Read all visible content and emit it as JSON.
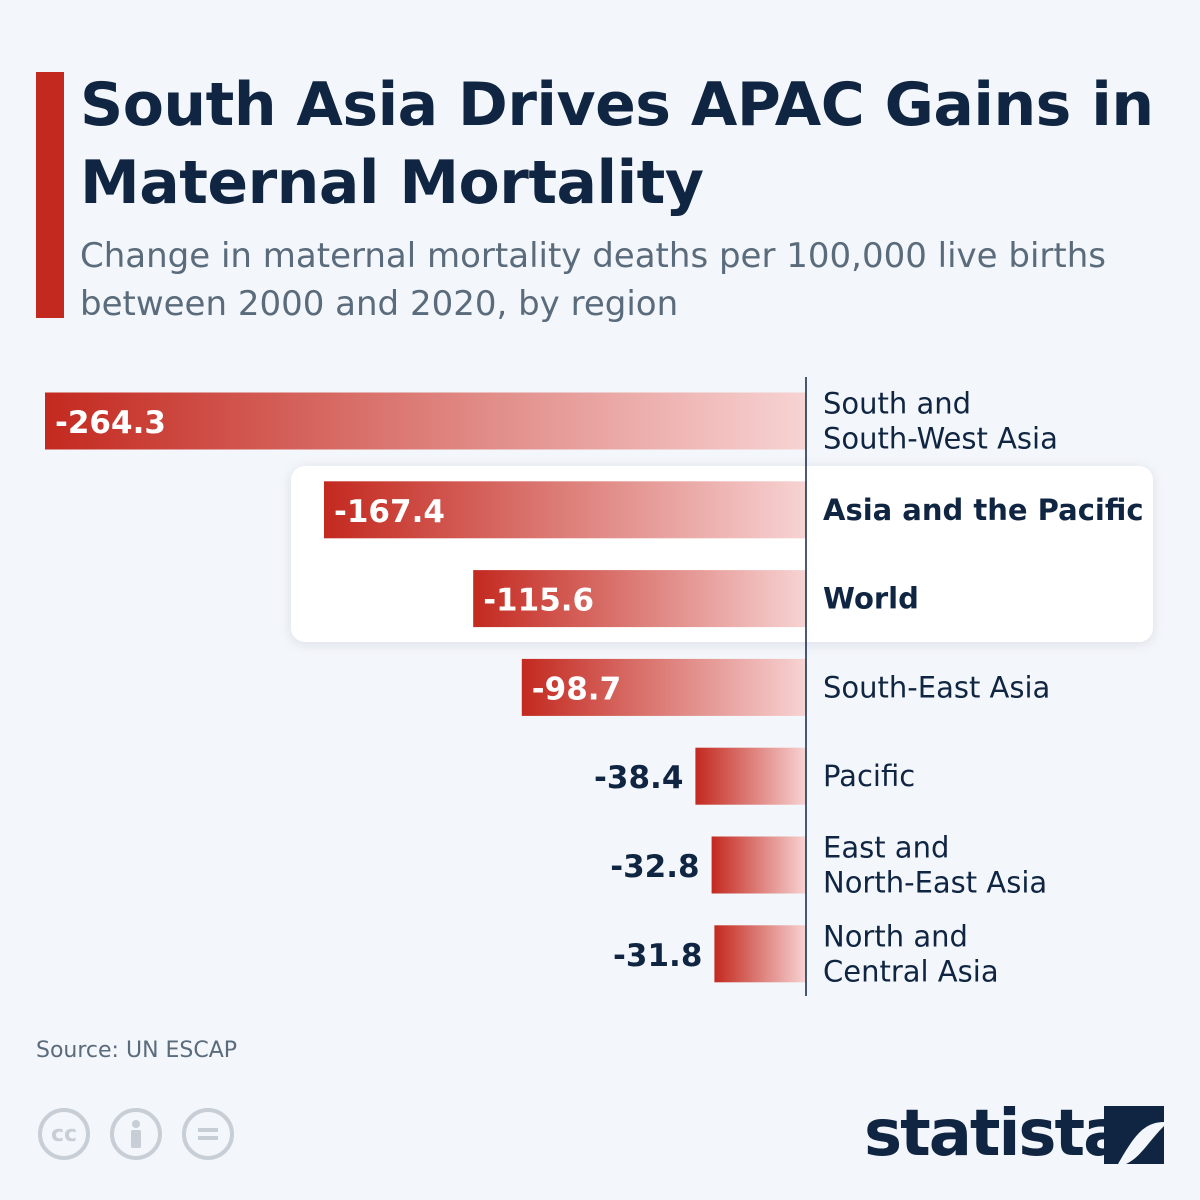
{
  "title": "South Asia Drives APAC Gains in Maternal Mortality",
  "subtitle": "Change in maternal mortality deaths per 100,000 live births between 2000 and 2020, by region",
  "source": "Source: UN ESCAP",
  "brand": "statista",
  "license_icons": [
    "cc-icon",
    "attribution-icon",
    "no-derivatives-icon"
  ],
  "colors": {
    "bar_strong": "#c3291f",
    "bar_light": "#f7d3d3",
    "text_dark": "#0f2541",
    "text_muted": "#5a6b7c"
  },
  "chart_data": {
    "type": "bar",
    "orientation": "horizontal",
    "categories": [
      "South and South-West Asia",
      "Asia and the Pacific",
      "World",
      "South-East Asia",
      "Pacific",
      "East and North-East Asia",
      "North and Central Asia"
    ],
    "label_lines": [
      [
        "South and",
        "South-West Asia"
      ],
      [
        "Asia and the Pacific"
      ],
      [
        "World"
      ],
      [
        "South-East Asia"
      ],
      [
        "Pacific"
      ],
      [
        "East and",
        "North-East Asia"
      ],
      [
        "North and",
        "Central Asia"
      ]
    ],
    "values": [
      -264.3,
      -167.4,
      -115.6,
      -98.7,
      -38.4,
      -32.8,
      -31.8
    ],
    "value_labels": [
      "-264.3",
      "-167.4",
      "-115.6",
      "-98.7",
      "-38.4",
      "-32.8",
      "-31.8"
    ],
    "highlighted": [
      "Asia and the Pacific",
      "World"
    ],
    "xlim": [
      -264.3,
      0
    ]
  }
}
